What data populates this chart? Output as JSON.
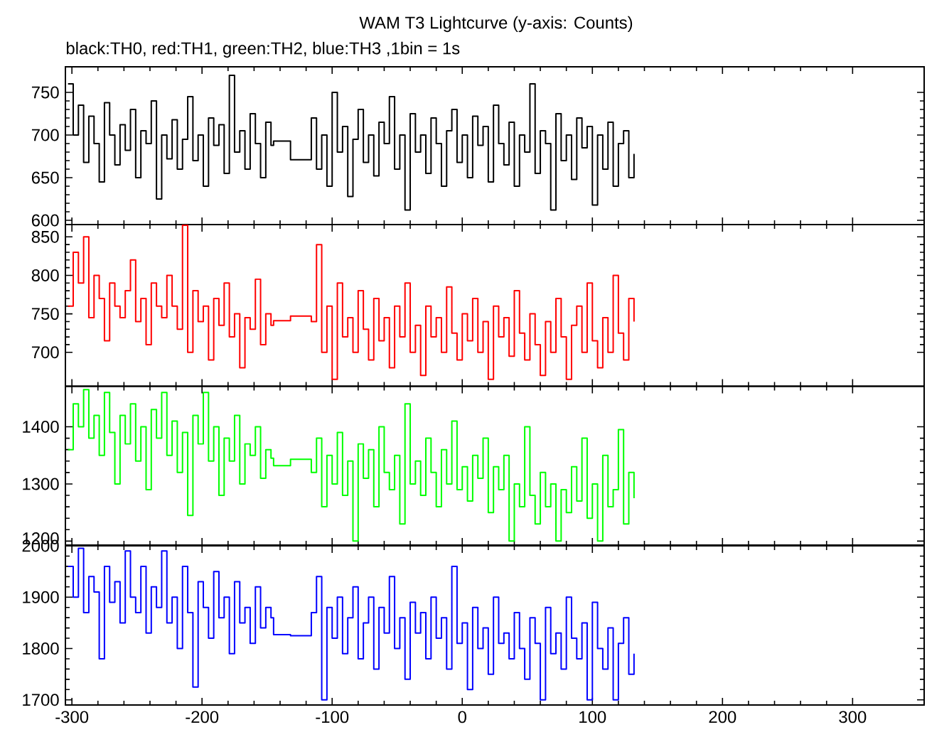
{
  "chart_data": [
    {
      "type": "step",
      "title": "WAM T3 Lightcurve (y-axis: Counts)",
      "subtitle": "black:TH0, red:TH1, green:TH2, blue:TH3 ,1bin = 1s",
      "x": [
        -303,
        -299,
        -295,
        -291,
        -287,
        -283,
        -279,
        -275,
        -271,
        -267,
        -263,
        -259,
        -255,
        -251,
        -247,
        -243,
        -239,
        -235,
        -231,
        -227,
        -223,
        -219,
        -215,
        -211,
        -207,
        -203,
        -199,
        -195,
        -191,
        -187,
        -183,
        -179,
        -175,
        -171,
        -167,
        -163,
        -159,
        -155,
        -151,
        -147,
        -145,
        -132,
        -116,
        -112,
        -108,
        -104,
        -100,
        -96,
        -92,
        -88,
        -84,
        -80,
        -76,
        -72,
        -68,
        -64,
        -60,
        -56,
        -52,
        -48,
        -44,
        -40,
        -36,
        -32,
        -28,
        -24,
        -20,
        -16,
        -12,
        -8,
        -4,
        0,
        4,
        8,
        12,
        16,
        20,
        24,
        28,
        32,
        36,
        40,
        44,
        48,
        52,
        56,
        60,
        64,
        68,
        72,
        76,
        80,
        84,
        88,
        92,
        96,
        100,
        104,
        108,
        112,
        116,
        120,
        124,
        128,
        132
      ],
      "series": [
        {
          "color": "#000000",
          "values": [
            760,
            700,
            735,
            668,
            722,
            690,
            645,
            738,
            700,
            665,
            712,
            682,
            730,
            650,
            705,
            690,
            740,
            625,
            700,
            672,
            718,
            660,
            695,
            745,
            670,
            700,
            640,
            720,
            688,
            712,
            655,
            770,
            680,
            705,
            660,
            725,
            690,
            650,
            715,
            688,
            693,
            671,
            720,
            660,
            700,
            640,
            750,
            680,
            710,
            628,
            695,
            730,
            668,
            700,
            652,
            715,
            690,
            745,
            660,
            700,
            612,
            725,
            680,
            700,
            655,
            720,
            690,
            640,
            705,
            730,
            668,
            700,
            650,
            722,
            688,
            710,
            645,
            735,
            690,
            665,
            715,
            640,
            700,
            680,
            760,
            655,
            705,
            690,
            612,
            725,
            670,
            700,
            648,
            720,
            685,
            710,
            618,
            700,
            660,
            715,
            640,
            690,
            705,
            650,
            678
          ]
        }
      ],
      "xlim": [
        -305,
        355
      ],
      "ylim": [
        595,
        780
      ],
      "xticks": [
        -300,
        -200,
        -100,
        0,
        100,
        200,
        300
      ],
      "yticks": [
        600,
        650,
        700,
        750
      ],
      "tick_labels": "y"
    },
    {
      "type": "step",
      "x": [
        -303,
        -299,
        -295,
        -291,
        -287,
        -283,
        -279,
        -275,
        -271,
        -267,
        -263,
        -259,
        -255,
        -251,
        -247,
        -243,
        -239,
        -235,
        -231,
        -227,
        -223,
        -219,
        -215,
        -211,
        -207,
        -203,
        -199,
        -195,
        -191,
        -187,
        -183,
        -179,
        -175,
        -171,
        -167,
        -163,
        -159,
        -155,
        -151,
        -147,
        -145,
        -132,
        -116,
        -112,
        -108,
        -104,
        -100,
        -96,
        -92,
        -88,
        -84,
        -80,
        -76,
        -72,
        -68,
        -64,
        -60,
        -56,
        -52,
        -48,
        -44,
        -40,
        -36,
        -32,
        -28,
        -24,
        -20,
        -16,
        -12,
        -8,
        -4,
        0,
        4,
        8,
        12,
        16,
        20,
        24,
        28,
        32,
        36,
        40,
        44,
        48,
        52,
        56,
        60,
        64,
        68,
        72,
        76,
        80,
        84,
        88,
        92,
        96,
        100,
        104,
        108,
        112,
        116,
        120,
        124,
        128,
        132
      ],
      "series": [
        {
          "color": "#ff0000",
          "values": [
            760,
            830,
            790,
            850,
            745,
            800,
            770,
            715,
            790,
            760,
            745,
            780,
            820,
            740,
            770,
            710,
            790,
            760,
            745,
            800,
            760,
            730,
            865,
            700,
            780,
            740,
            760,
            690,
            770,
            735,
            790,
            720,
            750,
            680,
            745,
            730,
            795,
            710,
            750,
            735,
            741,
            747,
            740,
            840,
            700,
            760,
            665,
            790,
            720,
            745,
            700,
            780,
            730,
            690,
            770,
            715,
            745,
            680,
            760,
            720,
            790,
            700,
            735,
            670,
            760,
            720,
            745,
            700,
            785,
            725,
            690,
            750,
            715,
            770,
            700,
            740,
            665,
            760,
            720,
            745,
            695,
            780,
            725,
            690,
            750,
            710,
            670,
            740,
            700,
            770,
            720,
            665,
            735,
            760,
            700,
            790,
            715,
            680,
            745,
            700,
            800,
            725,
            690,
            770,
            740
          ]
        }
      ],
      "xlim": [
        -305,
        355
      ],
      "ylim": [
        656,
        866
      ],
      "xticks": [
        -300,
        -200,
        -100,
        0,
        100,
        200,
        300
      ],
      "yticks": [
        700,
        750,
        800,
        850
      ],
      "tick_labels": "y"
    },
    {
      "type": "step",
      "x": [
        -303,
        -299,
        -295,
        -291,
        -287,
        -283,
        -279,
        -275,
        -271,
        -267,
        -263,
        -259,
        -255,
        -251,
        -247,
        -243,
        -239,
        -235,
        -231,
        -227,
        -223,
        -219,
        -215,
        -211,
        -207,
        -203,
        -199,
        -195,
        -191,
        -187,
        -183,
        -179,
        -175,
        -171,
        -167,
        -163,
        -159,
        -155,
        -151,
        -147,
        -145,
        -132,
        -116,
        -112,
        -108,
        -104,
        -100,
        -96,
        -92,
        -88,
        -84,
        -80,
        -76,
        -72,
        -68,
        -64,
        -60,
        -56,
        -52,
        -48,
        -44,
        -40,
        -36,
        -32,
        -28,
        -24,
        -20,
        -16,
        -12,
        -8,
        -4,
        0,
        4,
        8,
        12,
        16,
        20,
        24,
        28,
        32,
        36,
        40,
        44,
        48,
        52,
        56,
        60,
        64,
        68,
        72,
        76,
        80,
        84,
        88,
        92,
        96,
        100,
        104,
        108,
        112,
        116,
        120,
        124,
        128,
        132
      ],
      "series": [
        {
          "color": "#00ff00",
          "values": [
            1360,
            1440,
            1400,
            1465,
            1380,
            1420,
            1350,
            1460,
            1390,
            1300,
            1420,
            1370,
            1440,
            1340,
            1400,
            1290,
            1430,
            1380,
            1460,
            1350,
            1410,
            1320,
            1390,
            1245,
            1420,
            1370,
            1460,
            1340,
            1400,
            1280,
            1380,
            1340,
            1420,
            1300,
            1370,
            1350,
            1400,
            1310,
            1360,
            1345,
            1332,
            1343,
            1320,
            1380,
            1260,
            1350,
            1300,
            1390,
            1280,
            1340,
            1200,
            1370,
            1310,
            1360,
            1260,
            1400,
            1320,
            1290,
            1350,
            1230,
            1440,
            1300,
            1340,
            1280,
            1380,
            1320,
            1260,
            1360,
            1300,
            1410,
            1290,
            1330,
            1270,
            1350,
            1310,
            1380,
            1250,
            1330,
            1290,
            1350,
            1200,
            1300,
            1260,
            1400,
            1280,
            1230,
            1320,
            1260,
            1300,
            1200,
            1290,
            1250,
            1330,
            1270,
            1380,
            1240,
            1300,
            1200,
            1350,
            1260,
            1290,
            1395,
            1230,
            1320,
            1275
          ]
        }
      ],
      "xlim": [
        -305,
        355
      ],
      "ylim": [
        1193,
        1471
      ],
      "xticks": [
        -300,
        -200,
        -100,
        0,
        100,
        200,
        300
      ],
      "yticks": [
        1200,
        1300,
        1400
      ],
      "tick_labels": "y"
    },
    {
      "type": "step",
      "x": [
        -303,
        -299,
        -295,
        -291,
        -287,
        -283,
        -279,
        -275,
        -271,
        -267,
        -263,
        -259,
        -255,
        -251,
        -247,
        -243,
        -239,
        -235,
        -231,
        -227,
        -223,
        -219,
        -215,
        -211,
        -207,
        -203,
        -199,
        -195,
        -191,
        -187,
        -183,
        -179,
        -175,
        -171,
        -167,
        -163,
        -159,
        -155,
        -151,
        -147,
        -145,
        -132,
        -116,
        -112,
        -108,
        -104,
        -100,
        -96,
        -92,
        -88,
        -84,
        -80,
        -76,
        -72,
        -68,
        -64,
        -60,
        -56,
        -52,
        -48,
        -44,
        -40,
        -36,
        -32,
        -28,
        -24,
        -20,
        -16,
        -12,
        -8,
        -4,
        0,
        4,
        8,
        12,
        16,
        20,
        24,
        28,
        32,
        36,
        40,
        44,
        48,
        52,
        56,
        60,
        64,
        68,
        72,
        76,
        80,
        84,
        88,
        92,
        96,
        100,
        104,
        108,
        112,
        116,
        120,
        124,
        128,
        132
      ],
      "series": [
        {
          "color": "#0000ff",
          "values": [
            1960,
            1900,
            1995,
            1870,
            1940,
            1910,
            1780,
            1960,
            1890,
            1930,
            1850,
            1990,
            1900,
            1870,
            1960,
            1830,
            1920,
            1880,
            1990,
            1850,
            1900,
            1800,
            1960,
            1870,
            1725,
            1930,
            1880,
            1820,
            1950,
            1860,
            1900,
            1790,
            1930,
            1850,
            1880,
            1810,
            1920,
            1840,
            1880,
            1860,
            1827,
            1825,
            1870,
            1940,
            1700,
            1880,
            1820,
            1900,
            1790,
            1860,
            1920,
            1780,
            1850,
            1900,
            1760,
            1880,
            1830,
            1940,
            1800,
            1860,
            1740,
            1890,
            1830,
            1870,
            1780,
            1900,
            1820,
            1860,
            1760,
            1960,
            1810,
            1850,
            1720,
            1880,
            1800,
            1840,
            1750,
            1900,
            1810,
            1830,
            1780,
            1870,
            1800,
            1740,
            1860,
            1810,
            1700,
            1880,
            1790,
            1830,
            1760,
            1900,
            1820,
            1780,
            1850,
            1700,
            1890,
            1800,
            1760,
            1840,
            1700,
            1810,
            1860,
            1750,
            1790
          ]
        }
      ],
      "xlim": [
        -305,
        355
      ],
      "ylim": [
        1690,
        2000
      ],
      "xticks": [
        -300,
        -200,
        -100,
        0,
        100,
        200,
        300
      ],
      "yticks": [
        1700,
        1800,
        1900,
        2000
      ]
    }
  ]
}
